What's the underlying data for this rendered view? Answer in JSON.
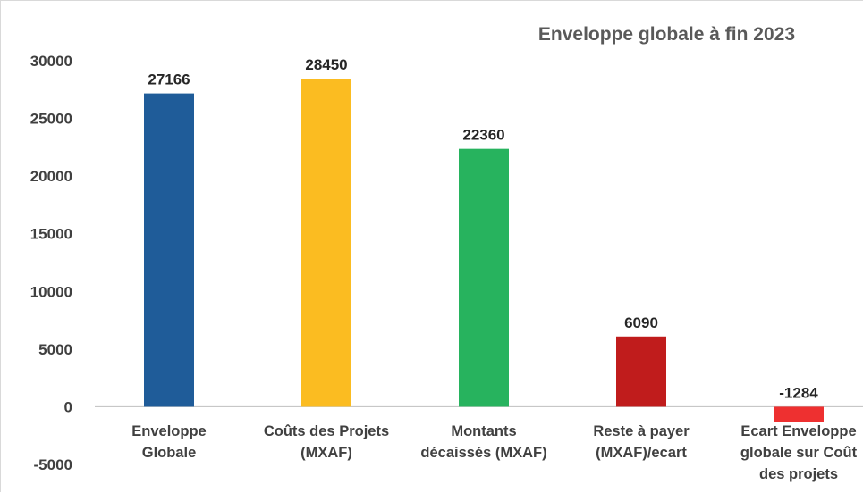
{
  "chart_data": {
    "type": "bar",
    "title": "Enveloppe globale à fin 2023",
    "xlabel": "",
    "ylabel": "",
    "categories": [
      [
        "Enveloppe",
        "Globale"
      ],
      [
        "Coûts des Projets",
        "(MXAF)"
      ],
      [
        "Montants",
        "décaissés  (MXAF)"
      ],
      [
        "Reste à payer",
        "(MXAF)/ecart"
      ],
      [
        "Ecart Enveloppe",
        "globale sur Coût",
        "des projets"
      ]
    ],
    "values": [
      27166,
      28450,
      22360,
      6090,
      -1284
    ],
    "data_labels": [
      "27166",
      "28450",
      "22360",
      "6090",
      "-1284"
    ],
    "colors": [
      "#1f5c99",
      "#fbbc21",
      "#27b35e",
      "#c01c1c",
      "#ee3030"
    ],
    "ylim": [
      -5000,
      30000
    ],
    "yticks": [
      30000,
      25000,
      20000,
      15000,
      10000,
      5000,
      0,
      -5000
    ],
    "ytick_labels": [
      "30000",
      "25000",
      "20000",
      "15000",
      "10000",
      "5000",
      "0",
      "-5000"
    ],
    "grid": false,
    "legend": "none"
  }
}
